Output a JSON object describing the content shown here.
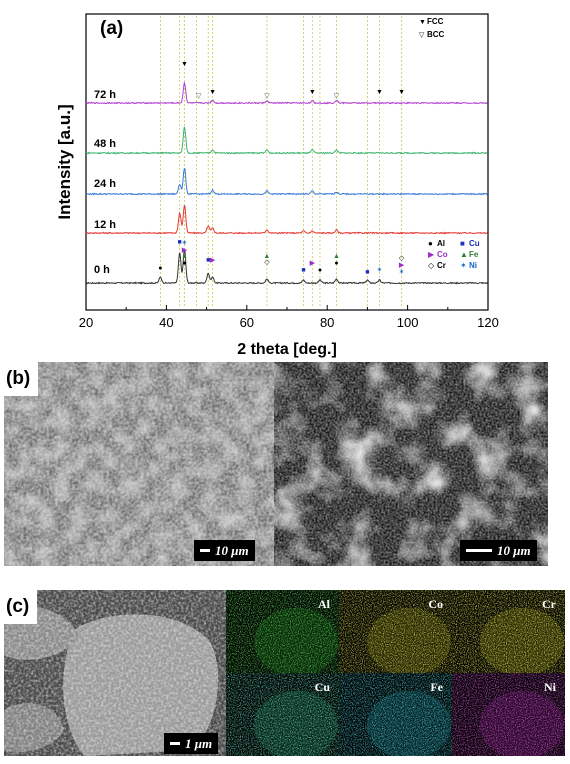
{
  "panels": {
    "a": "(a)",
    "b": "(b)",
    "c": "(c)"
  },
  "chart_data": {
    "type": "line",
    "title": "",
    "xlabel": "2 theta [deg.]",
    "ylabel": "Intensity [a.u.]",
    "xlim": [
      20,
      120
    ],
    "x_ticks": [
      "20",
      "40",
      "60",
      "80",
      "100",
      "120"
    ],
    "legend_top": [
      {
        "symbol": "▼",
        "label": "FCC"
      },
      {
        "symbol": "▽",
        "label": "BCC"
      }
    ],
    "legend_elements": [
      {
        "symbol": "●",
        "label": "Al",
        "color": "#000000"
      },
      {
        "symbol": "■",
        "label": "Cu",
        "color": "#1f2fbf"
      },
      {
        "symbol": "▶",
        "label": "Co",
        "color": "#9b30c8"
      },
      {
        "symbol": "▲",
        "label": "Fe",
        "color": "#2e7d32"
      },
      {
        "symbol": "◇",
        "label": "Cr",
        "color": "#000000"
      },
      {
        "symbol": "✶",
        "label": "Ni",
        "color": "#1565c0"
      }
    ],
    "reference_lines": [
      38.5,
      43.3,
      44.5,
      47.5,
      50.4,
      51.5,
      65,
      74.1,
      76.3,
      78.2,
      82.3,
      90.0,
      93.0,
      98.5
    ],
    "series": [
      {
        "name": "0 h",
        "color": "#333333",
        "peaks": [
          [
            38.5,
            6
          ],
          [
            43.3,
            30
          ],
          [
            44.5,
            34
          ],
          [
            50.4,
            10
          ],
          [
            51.5,
            6
          ],
          [
            65.0,
            4
          ],
          [
            74.1,
            3
          ],
          [
            78.2,
            3
          ],
          [
            82.3,
            4
          ],
          [
            90.0,
            3
          ],
          [
            93.0,
            3
          ]
        ]
      },
      {
        "name": "12 h",
        "color": "#e53935",
        "peaks": [
          [
            43.3,
            20
          ],
          [
            44.5,
            28
          ],
          [
            50.4,
            7
          ],
          [
            51.5,
            5
          ],
          [
            65.0,
            3
          ],
          [
            74.1,
            2
          ],
          [
            76.3,
            2
          ],
          [
            82.3,
            3
          ]
        ]
      },
      {
        "name": "24 h",
        "color": "#3a7bd5",
        "peaks": [
          [
            43.3,
            10
          ],
          [
            44.5,
            26
          ],
          [
            51.5,
            4
          ],
          [
            65.0,
            3
          ],
          [
            76.3,
            3
          ],
          [
            82.3,
            2
          ]
        ]
      },
      {
        "name": "48 h",
        "color": "#3cb371",
        "peaks": [
          [
            44.5,
            26
          ],
          [
            51.5,
            3
          ],
          [
            65.0,
            3
          ],
          [
            76.3,
            3
          ],
          [
            82.3,
            3
          ]
        ]
      },
      {
        "name": "72 h",
        "color": "#b040d0",
        "peaks": [
          [
            44.5,
            20
          ],
          [
            51.5,
            3
          ],
          [
            65.0,
            2
          ],
          [
            76.3,
            2
          ],
          [
            82.3,
            3
          ]
        ]
      }
    ],
    "fcc_markers": [
      44.5,
      51.5,
      76.3,
      93.0,
      98.5
    ],
    "bcc_markers": [
      48.0,
      65.0,
      82.3
    ]
  },
  "sem_b": {
    "left_scale": "10 μm",
    "right_scale": "10 μm"
  },
  "sem_c": {
    "scale": "1 μm"
  },
  "eds_maps": [
    {
      "label": "Al",
      "color": "#1fbf1f"
    },
    {
      "label": "Co",
      "color": "#c8c81a"
    },
    {
      "label": "Cr",
      "color": "#d6d61c"
    },
    {
      "label": "Cu",
      "color": "#27c28a"
    },
    {
      "label": "Fe",
      "color": "#19b5c8"
    },
    {
      "label": "Ni",
      "color": "#c21fc2"
    }
  ]
}
